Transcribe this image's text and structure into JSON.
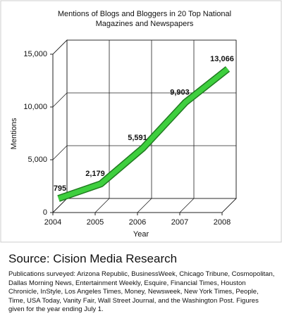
{
  "chart_data": {
    "type": "line3d",
    "title": "Mentions of Blogs and Bloggers in 20 Top National Magazines and Newspapers",
    "xlabel": "Year",
    "ylabel": "Mentions",
    "x": [
      2004,
      2005,
      2006,
      2007,
      2008
    ],
    "xlim": [
      2004,
      2008
    ],
    "xticks": [
      2004,
      2005,
      2006,
      2007,
      2008
    ],
    "series": [
      {
        "name": "Mentions",
        "color": "#3ecf3e",
        "values": [
          795,
          2179,
          5591,
          9903,
          13066
        ],
        "value_labels": [
          "795",
          "2,179",
          "5,591",
          "9,903",
          "13,066"
        ]
      }
    ],
    "ylim": [
      0,
      15000
    ],
    "yticks": [
      0,
      {
        "value": 5000,
        "label": "5,000"
      },
      {
        "value": 10000,
        "label": "10,000"
      },
      {
        "value": 15000,
        "label": "15,000"
      }
    ],
    "grid": true
  },
  "source": "Source: Cision Media Research",
  "note": "Publications surveyed: Arizona Republic, BusinessWeek, Chicago Tribune, Cosmopolitan, Dallas Morning News, Entertainment Weekly, Esquire, Financial Times, Houston Chronicle, InStyle, Los Angeles Times, Money, Newsweek, New York Times, People, Time, USA Today, Vanity Fair, Wall Street Journal, and the Washington Post.  Figures given for the year ending July 1."
}
